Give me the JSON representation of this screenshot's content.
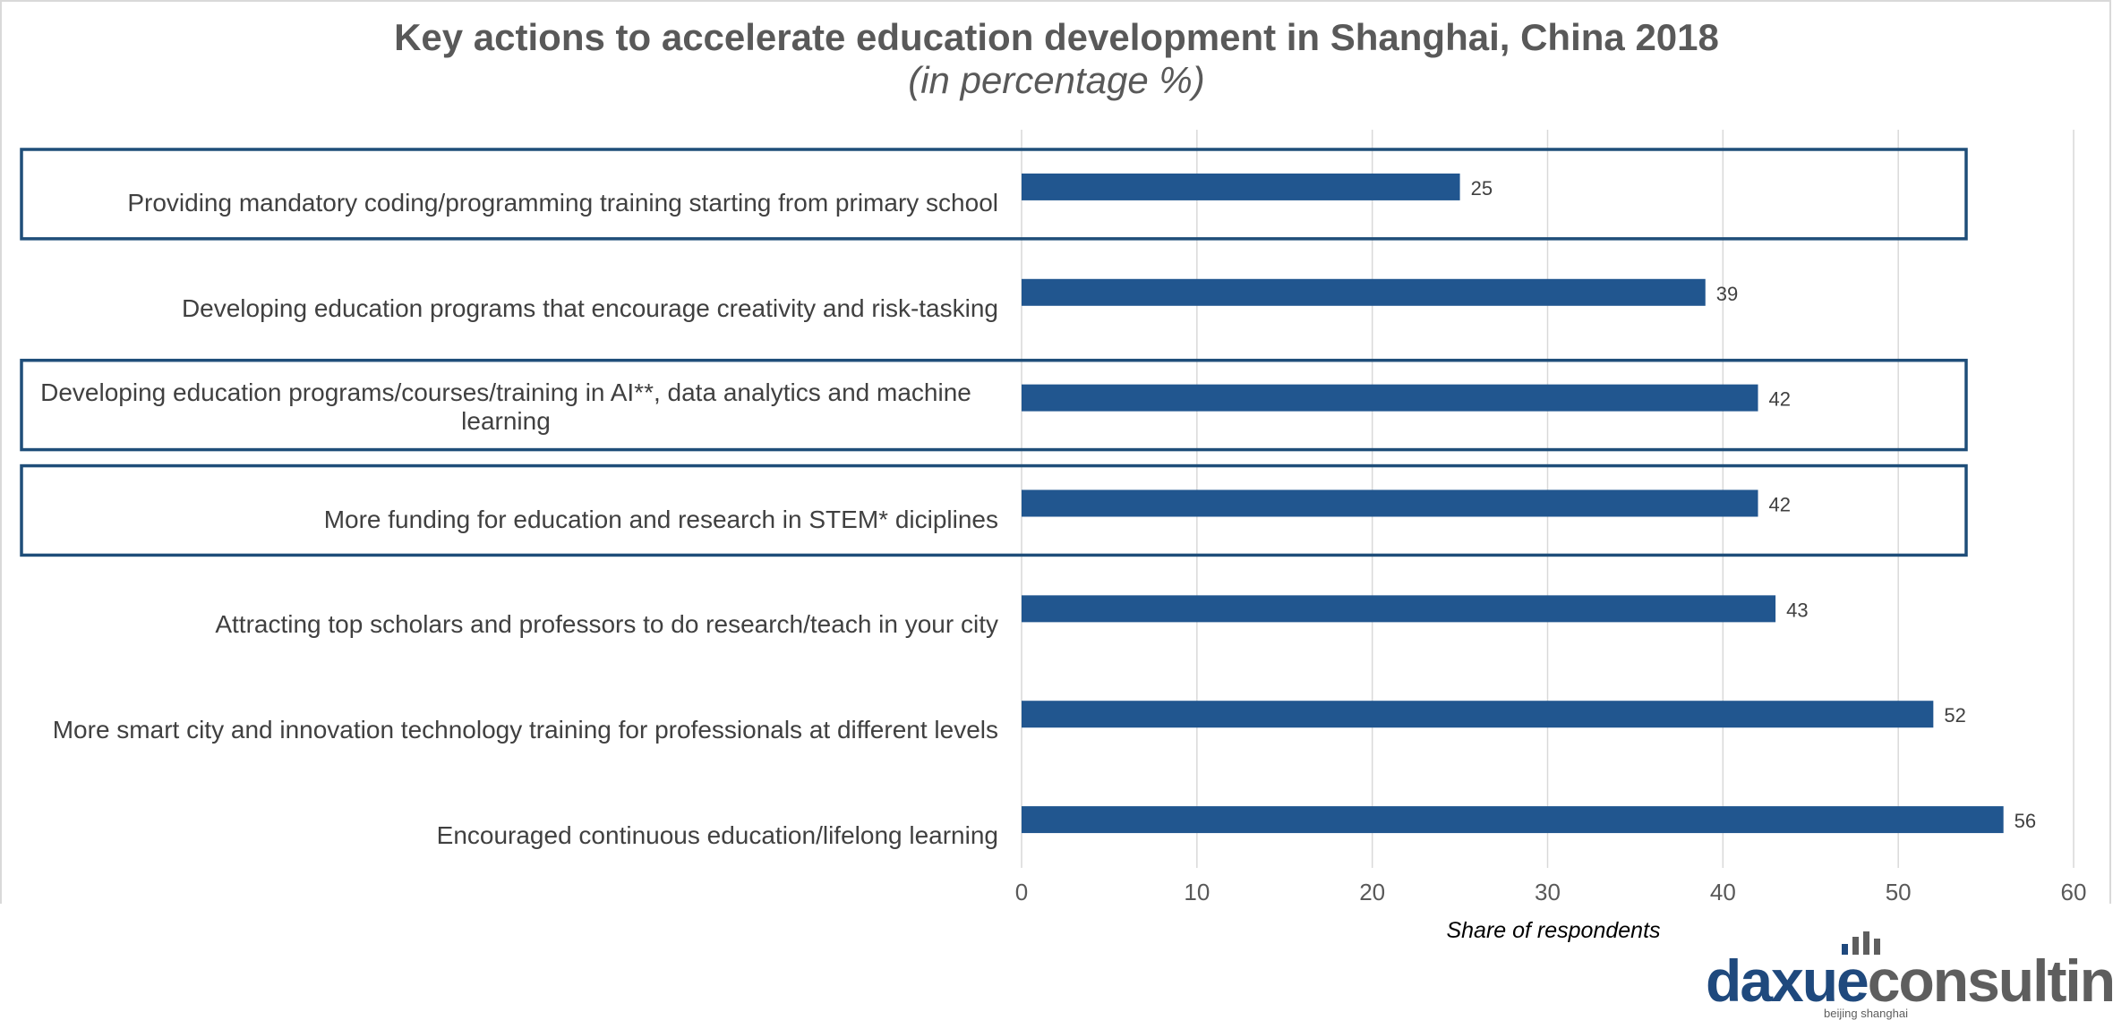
{
  "chart_data": {
    "type": "bar",
    "orientation": "horizontal",
    "title": "Key actions to accelerate education development in Shanghai, China 2018",
    "subtitle": "(in percentage %)",
    "categories": [
      "Providing mandatory coding/programming training starting from primary school",
      "Developing education programs that encourage creativity and risk-tasking",
      "Developing education programs/courses/training in AI**, data analytics and machine learning",
      "More funding for education and research in STEM* diciplines",
      "Attracting top scholars and professors to do research/teach in your city",
      "More smart city and innovation technology training for professionals at different levels",
      "Encouraged continuous education/lifelong learning"
    ],
    "values": [
      25,
      39,
      42,
      42,
      43,
      52,
      56
    ],
    "highlighted": [
      true,
      false,
      true,
      true,
      false,
      false,
      false
    ],
    "xlabel": "Share of respondents",
    "ylabel": "",
    "xlim": [
      0,
      60
    ],
    "xticks": [
      0,
      10,
      20,
      30,
      40,
      50,
      60
    ],
    "grid": true,
    "legend": "none"
  },
  "colors": {
    "bar": "#21568f",
    "highlight_box": "#1f4e79",
    "grid": "#d9d9d9",
    "tick_text": "#595959",
    "value_text": "#404040"
  },
  "logo": {
    "brand_part1": "daxue",
    "brand_part2": "consulting",
    "tagline": "beijing shanghai"
  }
}
